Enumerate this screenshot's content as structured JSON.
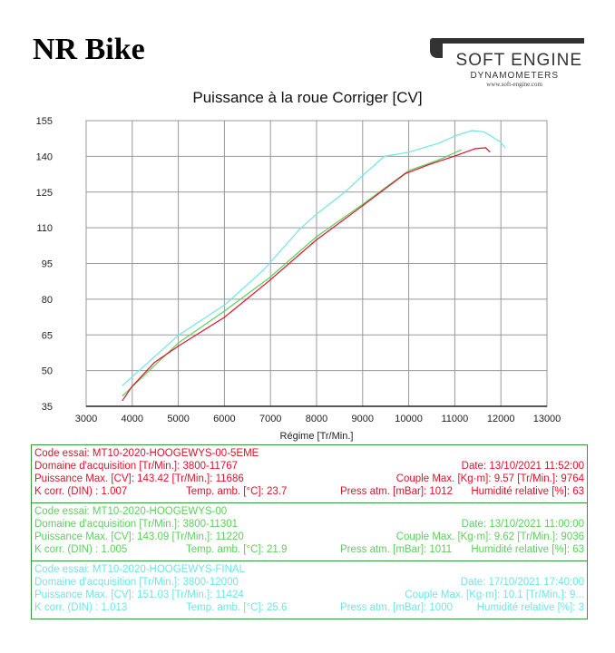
{
  "header": {
    "title": "NR Bike",
    "logo": {
      "brand": "SOFT ENGINE",
      "sub": "DYNAMOMETERS",
      "url": "www.soft-engine.com"
    }
  },
  "chart_data": {
    "type": "line",
    "title": "Puissance à la roue Corriger [CV]",
    "xlabel": "Régime [Tr/Min.]",
    "ylabel": "",
    "xlim": [
      3000,
      13000
    ],
    "ylim": [
      35,
      155
    ],
    "xticks": [
      3000,
      4000,
      5000,
      6000,
      7000,
      8000,
      9000,
      10000,
      11000,
      12000,
      13000
    ],
    "yticks": [
      35,
      50,
      65,
      80,
      95,
      110,
      125,
      140,
      155
    ],
    "grid": true,
    "series": [
      {
        "color": "#6ee6e6",
        "x": [
          3790,
          5000,
          6000,
          6840,
          7630,
          7990,
          8610,
          9010,
          9470,
          9990,
          10650,
          11010,
          11370,
          11630,
          11990,
          12090
        ],
        "y": [
          43.8,
          64.8,
          77.5,
          92.1,
          109.3,
          115.6,
          124.9,
          132.1,
          140,
          141.7,
          145.5,
          148.6,
          150.8,
          150.3,
          146.1,
          143.6
        ]
      },
      {
        "color": "#5cd05c",
        "x": [
          3790,
          5000,
          6000,
          6970,
          7990,
          9010,
          10000,
          10650,
          11140
        ],
        "y": [
          39.4,
          61.6,
          75,
          88.9,
          106.1,
          120,
          134,
          138.5,
          142.7
        ]
      },
      {
        "color": "#e0102a",
        "x": [
          3790,
          3990,
          4480,
          5000,
          6000,
          6970,
          7990,
          9010,
          9930,
          10450,
          11040,
          11440,
          11670,
          11760
        ],
        "y": [
          37.5,
          43.2,
          53.4,
          60.3,
          72.4,
          87.7,
          104.8,
          119.4,
          132.8,
          136.6,
          140.4,
          143.2,
          143.6,
          141.9
        ]
      }
    ]
  },
  "info": [
    {
      "code": "Code essai: MT10-2020-HOOGEWYS-00-5EME",
      "domaine": "Domaine d'acquisition [Tr/Min.]: 3800-11767",
      "date": "Date: 13/10/2021   11:52:00",
      "puissance": "Puissance Max. [CV]: 143.42   [Tr/Min.]: 11686",
      "couple": "Couple Max. [Kg·m]: 9.57   [Tr/Min.]: 9764",
      "kcorr": "K corr. (DIN) : 1.007",
      "temp": "Temp. amb. [°C]: 23.7",
      "press": "Press atm. [mBar]: 1012",
      "hum": "Humidité relative [%]: 63"
    },
    {
      "code": "Code essai: MT10-2020-HOOGEWYS-00",
      "domaine": "Domaine d'acquisition [Tr/Min.]: 3800-11301",
      "date": "Date: 13/10/2021   11:00:00",
      "puissance": "Puissance Max. [CV]: 143.09   [Tr/Min.]: 11220",
      "couple": "Couple Max. [Kg·m]: 9.62   [Tr/Min.]: 9036",
      "kcorr": "K corr. (DIN) : 1.005",
      "temp": "Temp. amb. [°C]: 21.9",
      "press": "Press atm. [mBar]: 1011",
      "hum": "Humidité relative [%]: 63"
    },
    {
      "code": "Code essai: MT10-2020-HOOGEWYS-FINAL",
      "domaine": "Domaine d'acquisition [Tr/Min.]: 3800-12000",
      "date": "Date: 17/10/2021   17:40:00",
      "puissance": "Puissance Max. [CV]: 151.03   [Tr/Min.]: 11424",
      "couple": "Couple Max. [Kg·m]: 10.1   [Tr/Min.]: 9...",
      "kcorr": "K corr. (DIN) : 1.013",
      "temp": "Temp. amb. [°C]: 25.6",
      "press": "Press atm. [mBar]: 1000",
      "hum": "Humidité relative [%]: 3"
    }
  ]
}
